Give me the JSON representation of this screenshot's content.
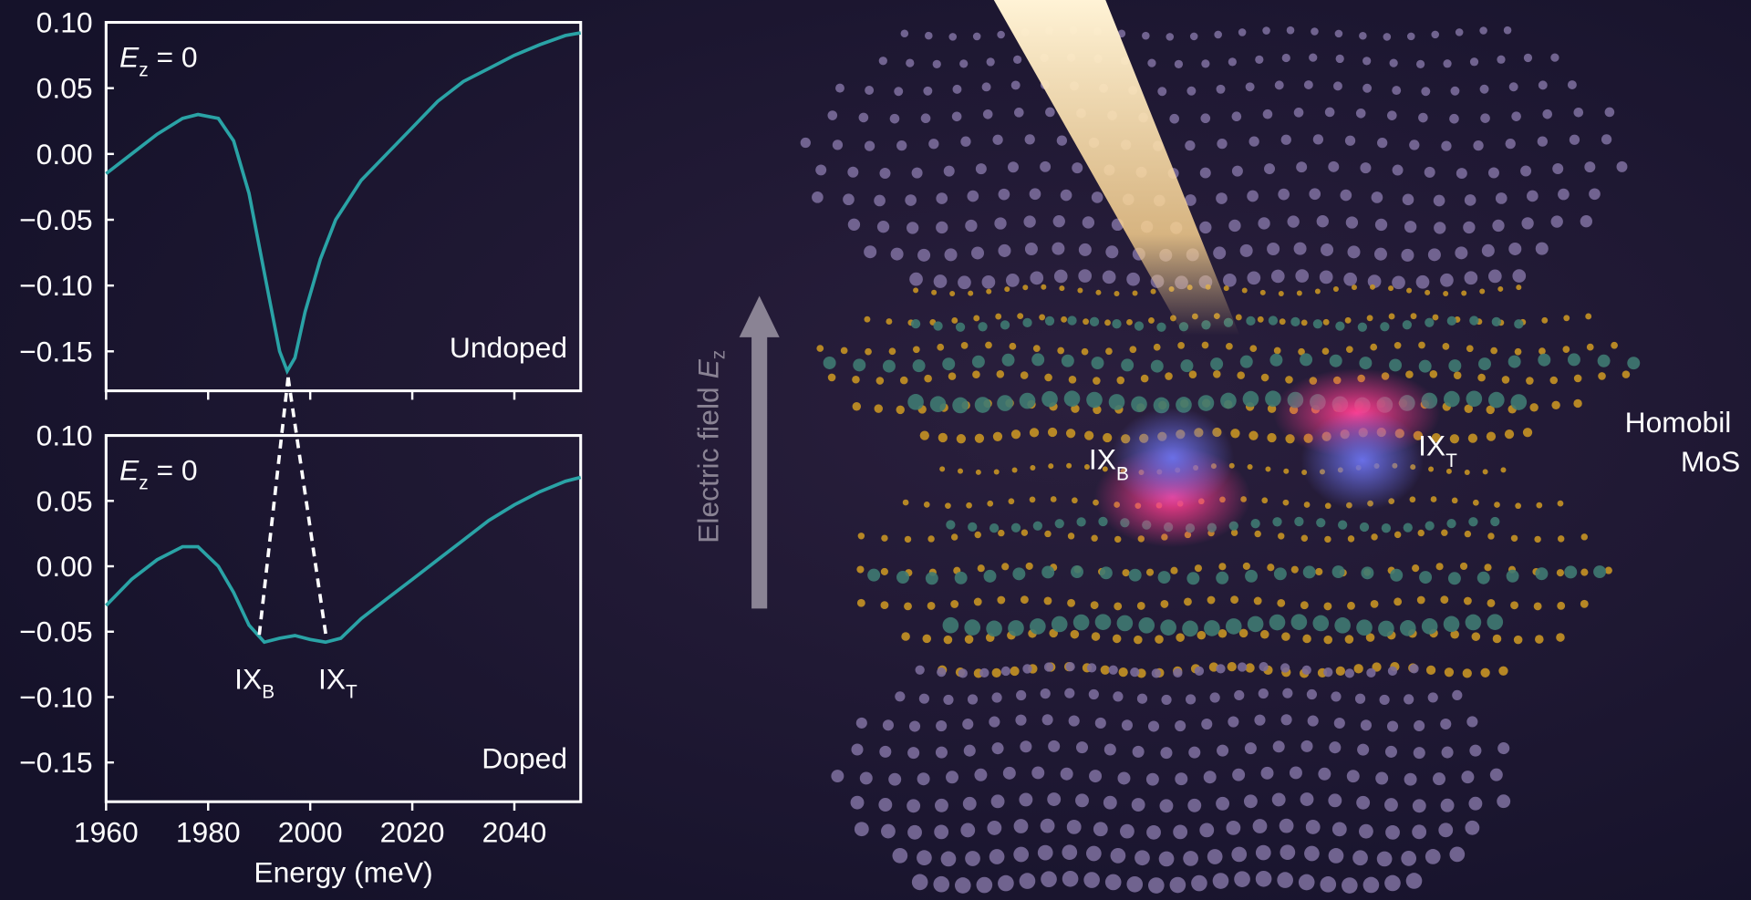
{
  "chart_data": [
    {
      "type": "line",
      "annotation": {
        "variable": "E",
        "subscript": "z",
        "text": " = 0"
      },
      "label": "Undoped",
      "x": [
        1960,
        1965,
        1970,
        1975,
        1978,
        1982,
        1985,
        1988,
        1990,
        1992,
        1994,
        1995.5,
        1997,
        1999,
        2002,
        2005,
        2010,
        2015,
        2020,
        2025,
        2030,
        2035,
        2040,
        2045,
        2050,
        2053
      ],
      "series": [
        {
          "color": "#2aa3a6",
          "values": [
            -0.015,
            0.0,
            0.015,
            0.027,
            0.03,
            0.027,
            0.01,
            -0.03,
            -0.07,
            -0.11,
            -0.15,
            -0.165,
            -0.155,
            -0.12,
            -0.08,
            -0.05,
            -0.02,
            0.0,
            0.02,
            0.04,
            0.055,
            0.065,
            0.075,
            0.083,
            0.09,
            0.092
          ]
        }
      ],
      "xlim": [
        1960,
        2053
      ],
      "ylim": [
        -0.18,
        0.1
      ],
      "xticks": [
        1960,
        1980,
        2000,
        2020,
        2040
      ],
      "yticks": [
        {
          "value": 0.1,
          "label": "0.10"
        },
        {
          "value": 0.05,
          "label": "0.05"
        },
        {
          "value": 0,
          "label": "0.00"
        },
        {
          "value": -0.05,
          "label": "−0.05"
        },
        {
          "value": -0.1,
          "label": "−0.10"
        },
        {
          "value": -0.15,
          "label": "−0.15"
        }
      ]
    },
    {
      "type": "line",
      "annotation": {
        "variable": "E",
        "subscript": "z",
        "text": " = 0"
      },
      "label": "Doped",
      "x": [
        1960,
        1965,
        1970,
        1975,
        1978,
        1982,
        1985,
        1988,
        1991,
        1994,
        1997,
        2000,
        2003,
        2006,
        2010,
        2015,
        2020,
        2025,
        2030,
        2035,
        2040,
        2045,
        2050,
        2053
      ],
      "series": [
        {
          "color": "#2aa3a6",
          "values": [
            -0.03,
            -0.01,
            0.005,
            0.015,
            0.015,
            0.0,
            -0.02,
            -0.045,
            -0.058,
            -0.055,
            -0.053,
            -0.056,
            -0.058,
            -0.055,
            -0.04,
            -0.025,
            -0.01,
            0.005,
            0.02,
            0.035,
            0.047,
            0.057,
            0.065,
            0.068
          ]
        }
      ],
      "peak_labels": [
        {
          "text": "IX",
          "subscript": "B"
        },
        {
          "text": "IX",
          "subscript": "T"
        }
      ],
      "xlim": [
        1960,
        2053
      ],
      "ylim": [
        -0.18,
        0.1
      ],
      "xticks": [
        1960,
        1980,
        2000,
        2020,
        2040
      ],
      "xlabel": "Energy (meV)",
      "yticks": [
        {
          "value": 0.1,
          "label": "0.10"
        },
        {
          "value": 0.05,
          "label": "0.05"
        },
        {
          "value": 0,
          "label": "0.00"
        },
        {
          "value": -0.05,
          "label": "−0.05"
        },
        {
          "value": -0.1,
          "label": "−0.10"
        },
        {
          "value": -0.15,
          "label": "−0.15"
        }
      ]
    }
  ],
  "illustration": {
    "field_label": {
      "text": "Electric field ",
      "variable": "E",
      "subscript": "z"
    },
    "exciton_labels": [
      {
        "text": "IX",
        "subscript": "B"
      },
      {
        "text": "IX",
        "subscript": "T"
      }
    ],
    "material_label": [
      "Homobil",
      "MoS"
    ]
  }
}
